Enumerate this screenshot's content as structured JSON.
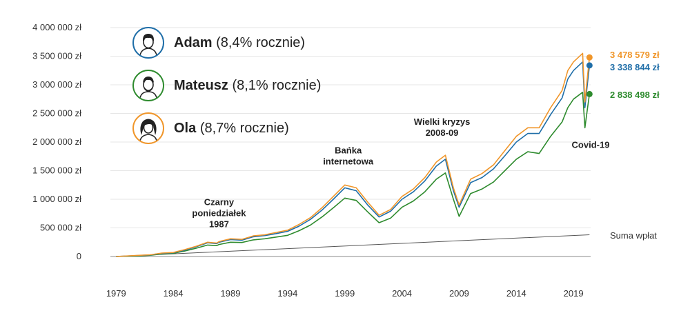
{
  "chart_data": {
    "type": "line",
    "title": "",
    "xlabel": "",
    "ylabel": "",
    "x_range": [
      1978.5,
      2020.5
    ],
    "ylim": [
      0,
      4000000
    ],
    "y_ticks": [
      {
        "value": 0,
        "label": "0"
      },
      {
        "value": 500000,
        "label": "500 000 zł"
      },
      {
        "value": 1000000,
        "label": "1 000 000 zł"
      },
      {
        "value": 1500000,
        "label": "1 500 000 zł"
      },
      {
        "value": 2000000,
        "label": "2 000 000 zł"
      },
      {
        "value": 2500000,
        "label": "2 500 000 zł"
      },
      {
        "value": 3000000,
        "label": "3 000 000 zł"
      },
      {
        "value": 3500000,
        "label": "3 500 000 zł"
      },
      {
        "value": 4000000,
        "label": "4 000 000 zł"
      }
    ],
    "x_ticks": [
      "1979",
      "1984",
      "1989",
      "1994",
      "1999",
      "2004",
      "2009",
      "2014",
      "2019"
    ],
    "grid": true,
    "legend_placement": "top-left",
    "series": [
      {
        "name": "Ola",
        "legend_name": "Ola",
        "legend_suffix": "(8,7% rocznie)",
        "color": "#f0962a",
        "end_label": "3 478 579 zł",
        "end_value": 3478579,
        "points": [
          [
            1979,
            0
          ],
          [
            1981,
            20000
          ],
          [
            1982,
            30000
          ],
          [
            1983,
            60000
          ],
          [
            1984,
            70000
          ],
          [
            1985,
            120000
          ],
          [
            1986,
            180000
          ],
          [
            1987,
            250000
          ],
          [
            1987.8,
            235000
          ],
          [
            1988,
            260000
          ],
          [
            1989,
            310000
          ],
          [
            1990,
            300000
          ],
          [
            1991,
            360000
          ],
          [
            1992,
            380000
          ],
          [
            1993,
            420000
          ],
          [
            1994,
            460000
          ],
          [
            1995,
            560000
          ],
          [
            1996,
            680000
          ],
          [
            1997,
            850000
          ],
          [
            1998,
            1050000
          ],
          [
            1999,
            1250000
          ],
          [
            2000,
            1200000
          ],
          [
            2001,
            950000
          ],
          [
            2002,
            720000
          ],
          [
            2003,
            820000
          ],
          [
            2004,
            1050000
          ],
          [
            2005,
            1180000
          ],
          [
            2006,
            1380000
          ],
          [
            2007,
            1650000
          ],
          [
            2007.8,
            1770000
          ],
          [
            2008.5,
            1200000
          ],
          [
            2009,
            900000
          ],
          [
            2010,
            1350000
          ],
          [
            2011,
            1450000
          ],
          [
            2012,
            1600000
          ],
          [
            2013,
            1850000
          ],
          [
            2014,
            2100000
          ],
          [
            2015,
            2250000
          ],
          [
            2016,
            2250000
          ],
          [
            2017,
            2600000
          ],
          [
            2018,
            2900000
          ],
          [
            2018.5,
            3250000
          ],
          [
            2019,
            3400000
          ],
          [
            2019.8,
            3550000
          ],
          [
            2020,
            2700000
          ],
          [
            2020.2,
            3100000
          ],
          [
            2020.4,
            3478579
          ]
        ]
      },
      {
        "name": "Adam",
        "legend_name": "Adam",
        "legend_suffix": "(8,4% rocznie)",
        "color": "#1f6ea8",
        "end_label": "3 338 844 zł",
        "end_value": 3338844,
        "points": [
          [
            1979,
            0
          ],
          [
            1981,
            18000
          ],
          [
            1982,
            28000
          ],
          [
            1983,
            55000
          ],
          [
            1984,
            65000
          ],
          [
            1985,
            110000
          ],
          [
            1986,
            170000
          ],
          [
            1987,
            240000
          ],
          [
            1987.8,
            225000
          ],
          [
            1988,
            250000
          ],
          [
            1989,
            295000
          ],
          [
            1990,
            285000
          ],
          [
            1991,
            345000
          ],
          [
            1992,
            365000
          ],
          [
            1993,
            400000
          ],
          [
            1994,
            440000
          ],
          [
            1995,
            530000
          ],
          [
            1996,
            650000
          ],
          [
            1997,
            810000
          ],
          [
            1998,
            1000000
          ],
          [
            1999,
            1200000
          ],
          [
            2000,
            1150000
          ],
          [
            2001,
            900000
          ],
          [
            2002,
            690000
          ],
          [
            2003,
            790000
          ],
          [
            2004,
            1000000
          ],
          [
            2005,
            1130000
          ],
          [
            2006,
            1320000
          ],
          [
            2007,
            1580000
          ],
          [
            2007.8,
            1700000
          ],
          [
            2008.5,
            1150000
          ],
          [
            2009,
            860000
          ],
          [
            2010,
            1290000
          ],
          [
            2011,
            1380000
          ],
          [
            2012,
            1530000
          ],
          [
            2013,
            1760000
          ],
          [
            2014,
            2000000
          ],
          [
            2015,
            2150000
          ],
          [
            2016,
            2150000
          ],
          [
            2017,
            2480000
          ],
          [
            2018,
            2770000
          ],
          [
            2018.5,
            3100000
          ],
          [
            2019,
            3250000
          ],
          [
            2019.8,
            3400000
          ],
          [
            2020,
            2600000
          ],
          [
            2020.2,
            2980000
          ],
          [
            2020.4,
            3338844
          ]
        ]
      },
      {
        "name": "Mateusz",
        "legend_name": "Mateusz",
        "legend_suffix": "(8,1% rocznie)",
        "color": "#2e8b2e",
        "end_label": "2 838 498 zł",
        "end_value": 2838498,
        "points": [
          [
            1979,
            0
          ],
          [
            1981,
            10000
          ],
          [
            1982,
            22000
          ],
          [
            1983,
            45000
          ],
          [
            1984,
            55000
          ],
          [
            1985,
            95000
          ],
          [
            1986,
            145000
          ],
          [
            1987,
            200000
          ],
          [
            1987.8,
            190000
          ],
          [
            1988,
            210000
          ],
          [
            1989,
            250000
          ],
          [
            1990,
            245000
          ],
          [
            1991,
            290000
          ],
          [
            1992,
            310000
          ],
          [
            1993,
            340000
          ],
          [
            1994,
            370000
          ],
          [
            1995,
            450000
          ],
          [
            1996,
            550000
          ],
          [
            1997,
            690000
          ],
          [
            1998,
            850000
          ],
          [
            1999,
            1020000
          ],
          [
            2000,
            980000
          ],
          [
            2001,
            780000
          ],
          [
            2002,
            590000
          ],
          [
            2003,
            670000
          ],
          [
            2004,
            860000
          ],
          [
            2005,
            970000
          ],
          [
            2006,
            1130000
          ],
          [
            2007,
            1350000
          ],
          [
            2007.8,
            1460000
          ],
          [
            2008.5,
            1000000
          ],
          [
            2009,
            700000
          ],
          [
            2010,
            1100000
          ],
          [
            2011,
            1180000
          ],
          [
            2012,
            1300000
          ],
          [
            2013,
            1500000
          ],
          [
            2014,
            1700000
          ],
          [
            2015,
            1830000
          ],
          [
            2016,
            1800000
          ],
          [
            2017,
            2100000
          ],
          [
            2018,
            2350000
          ],
          [
            2018.5,
            2600000
          ],
          [
            2019,
            2750000
          ],
          [
            2019.8,
            2870000
          ],
          [
            2020,
            2250000
          ],
          [
            2020.2,
            2550000
          ],
          [
            2020.4,
            2838498
          ]
        ]
      }
    ],
    "sum_series": {
      "name": "Suma wpłat",
      "color": "#555555",
      "points": [
        [
          1979,
          0
        ],
        [
          2020.4,
          380000
        ]
      ]
    },
    "annotations": [
      {
        "lines": [
          "Czarny",
          "poniedziałek",
          "1987"
        ],
        "x": 1988,
        "y": 900000
      },
      {
        "lines": [
          "Bańka",
          "internetowa"
        ],
        "x": 1999.3,
        "y": 1800000
      },
      {
        "lines": [
          "Wielki kryzys",
          "2008-09"
        ],
        "x": 2007.5,
        "y": 2300000
      },
      {
        "lines": [
          "Covid-19"
        ],
        "x": 2020.5,
        "y": 1900000
      }
    ]
  }
}
